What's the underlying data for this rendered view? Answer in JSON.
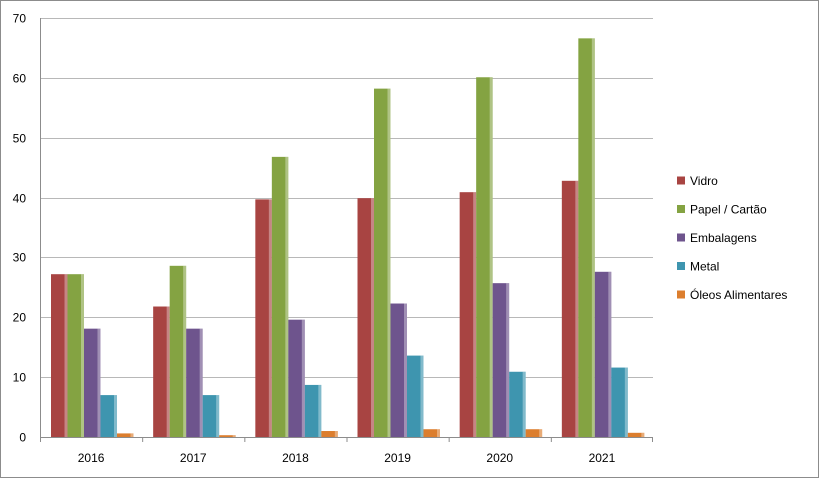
{
  "chart_data": {
    "type": "bar",
    "title": "",
    "xlabel": "",
    "ylabel": "",
    "categories": [
      "2016",
      "2017",
      "2018",
      "2019",
      "2020",
      "2021"
    ],
    "ylim": [
      0,
      70
    ],
    "yticks": [
      0,
      10,
      20,
      30,
      40,
      50,
      60,
      70
    ],
    "grid": true,
    "legend_position": "right",
    "series": [
      {
        "name": "Vidro",
        "color": "#A84442",
        "values": [
          27.2,
          21.8,
          39.7,
          39.9,
          40.9,
          42.8
        ]
      },
      {
        "name": "Papel / Cartão",
        "color": "#84A342",
        "values": [
          27.2,
          28.6,
          46.8,
          58.2,
          60.1,
          66.6
        ]
      },
      {
        "name": "Embalagens",
        "color": "#6E548D",
        "values": [
          18.1,
          18.1,
          19.6,
          22.3,
          25.7,
          27.6
        ]
      },
      {
        "name": "Metal",
        "color": "#3E95AF",
        "values": [
          7.0,
          7.0,
          8.7,
          13.6,
          10.9,
          11.6
        ]
      },
      {
        "name": "Óleos Alimentares",
        "color": "#DC7E2E",
        "values": [
          0.6,
          0.3,
          1.0,
          1.3,
          1.3,
          0.7
        ]
      }
    ]
  }
}
